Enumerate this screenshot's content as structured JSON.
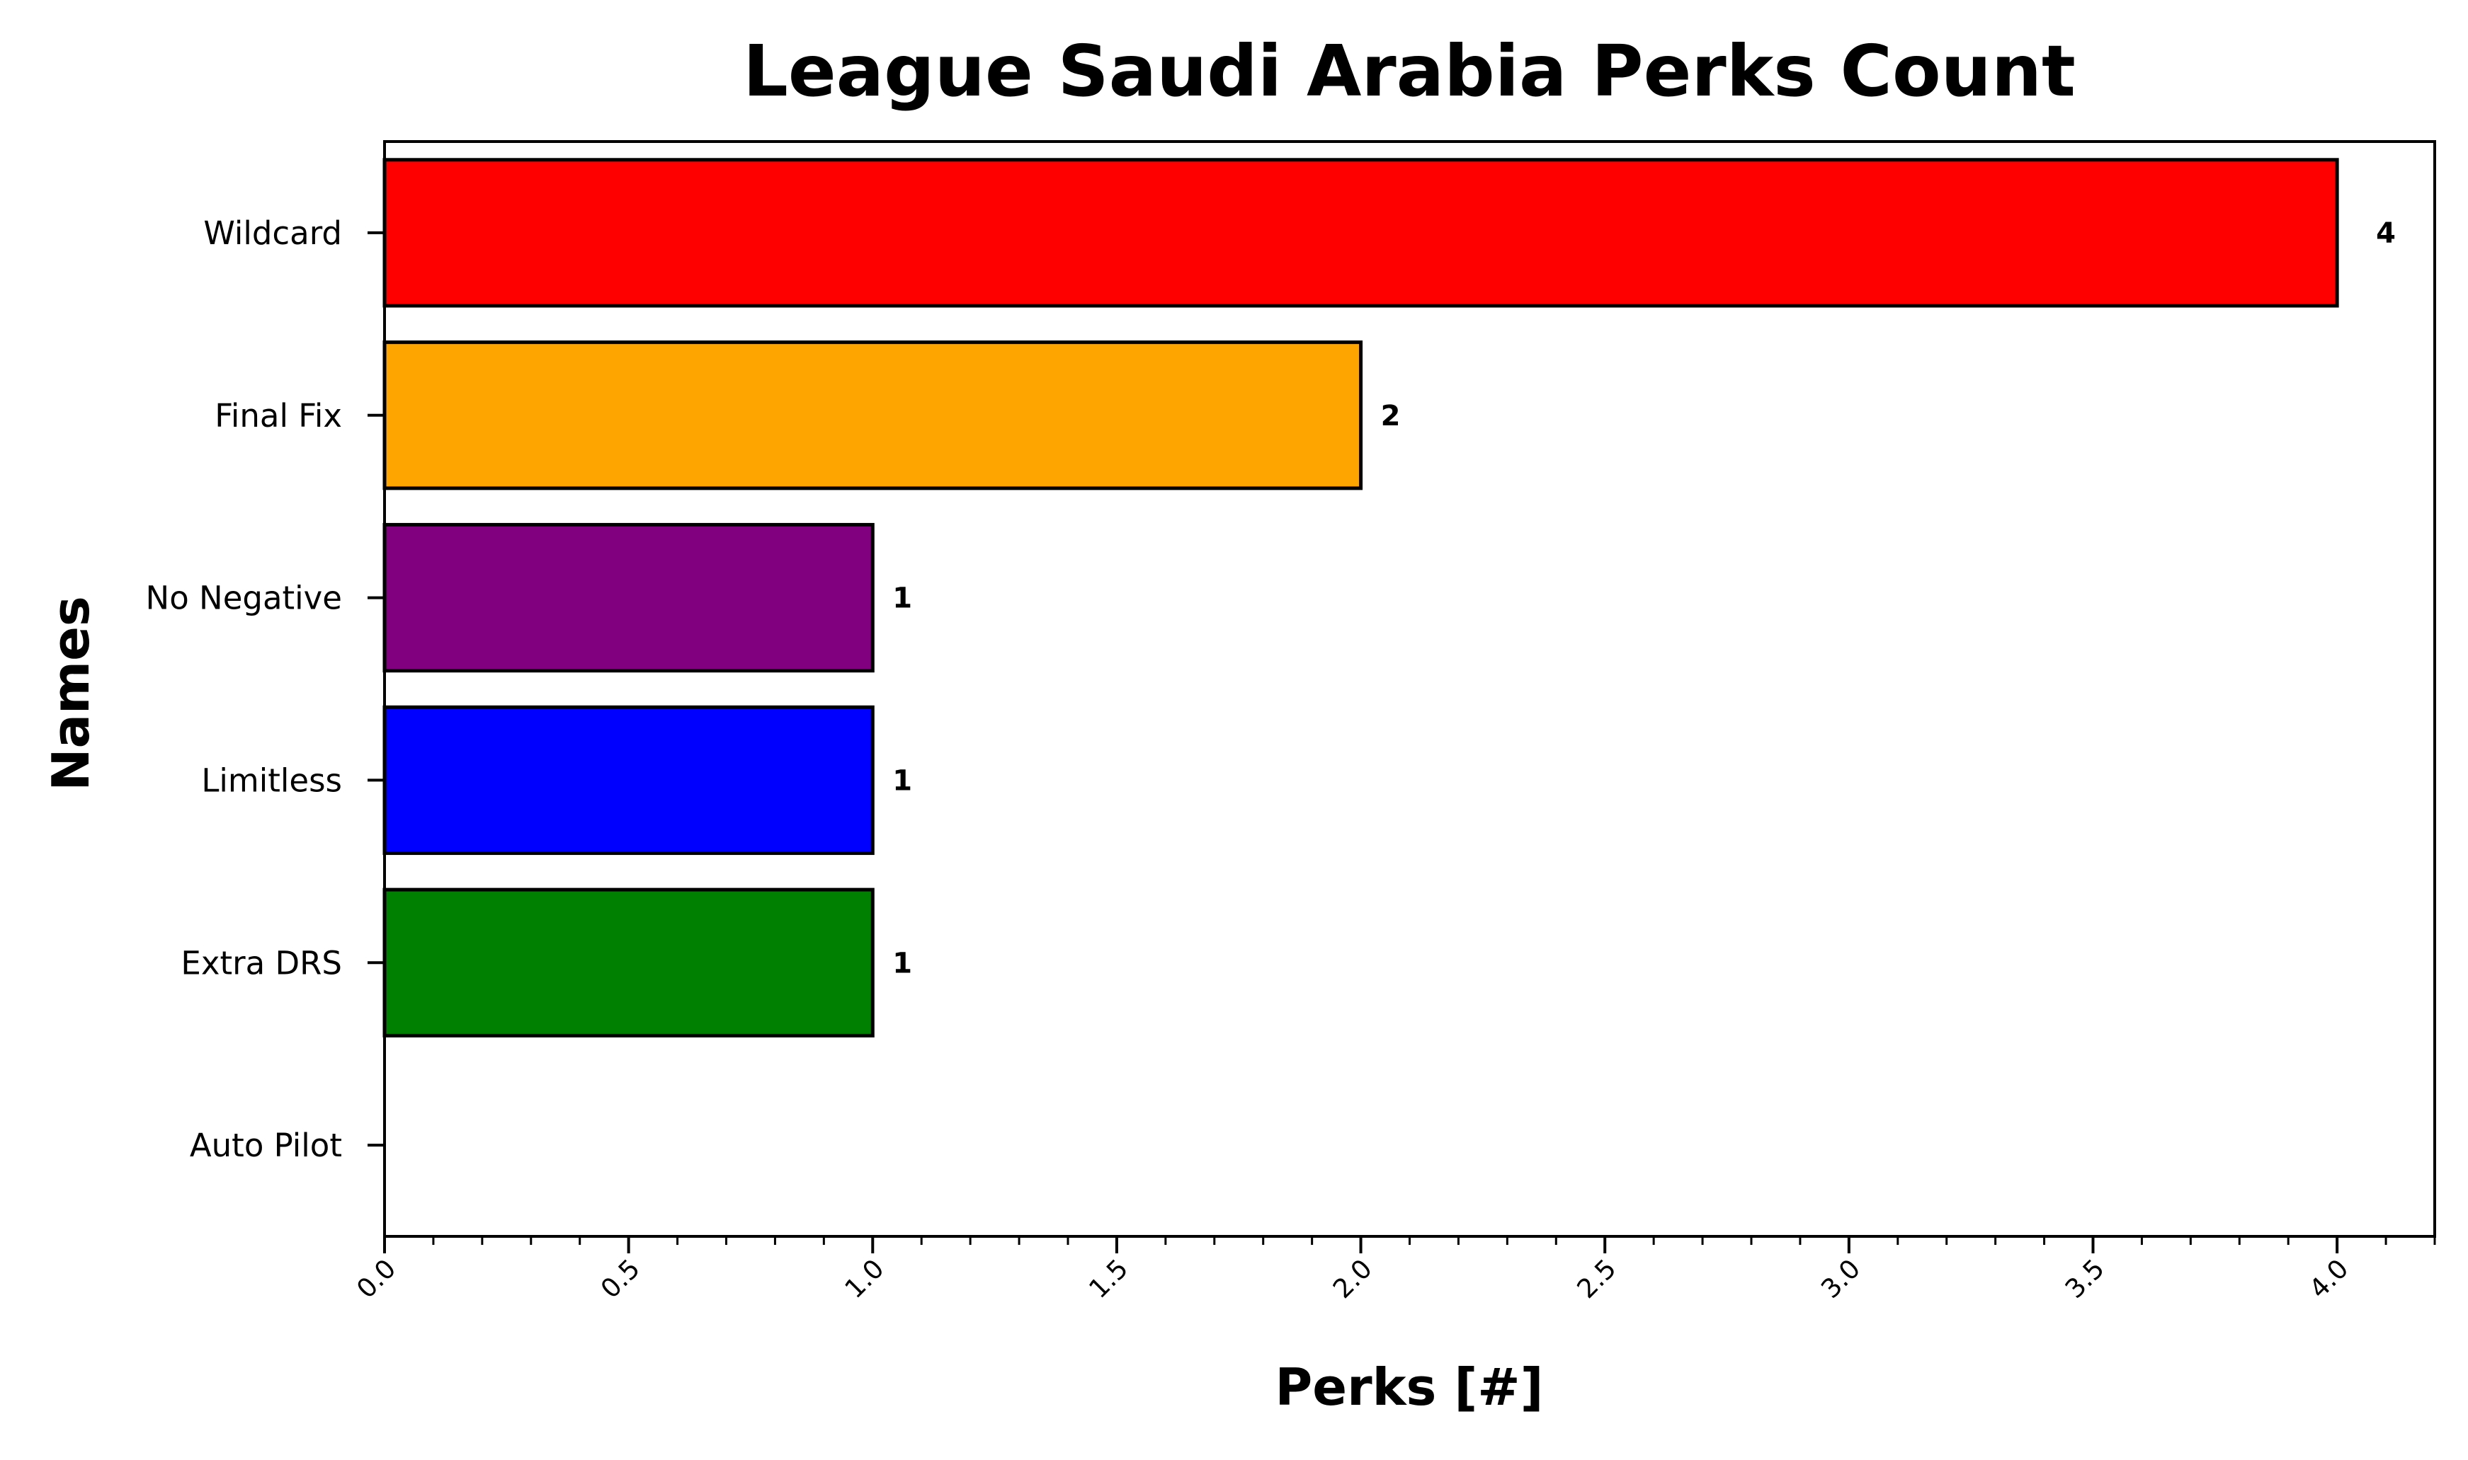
{
  "chart_data": {
    "type": "bar",
    "orientation": "horizontal",
    "title": "League Saudi Arabia Perks Count",
    "xlabel": "Perks [#]",
    "ylabel": "Names",
    "categories": [
      "Wildcard",
      "Final Fix",
      "No Negative",
      "Limitless",
      "Extra DRS",
      "Auto Pilot"
    ],
    "values": [
      4,
      2,
      1,
      1,
      1,
      0
    ],
    "value_labels": [
      "4",
      "2",
      "1",
      "1",
      "1",
      ""
    ],
    "colors": [
      "#ff0000",
      "#ffa500",
      "#800080",
      "#0000ff",
      "#008000",
      "#ff0000"
    ],
    "xlim": [
      0,
      4.2
    ],
    "xticks": [
      0.0,
      0.5,
      1.0,
      1.5,
      2.0,
      2.5,
      3.0,
      3.5,
      4.0
    ],
    "xtick_labels": [
      "0.0",
      "0.5",
      "1.0",
      "1.5",
      "2.0",
      "2.5",
      "3.0",
      "3.5",
      "4.0"
    ],
    "x_minor_tick_step": 0.1,
    "grid": false,
    "legend": "none"
  }
}
